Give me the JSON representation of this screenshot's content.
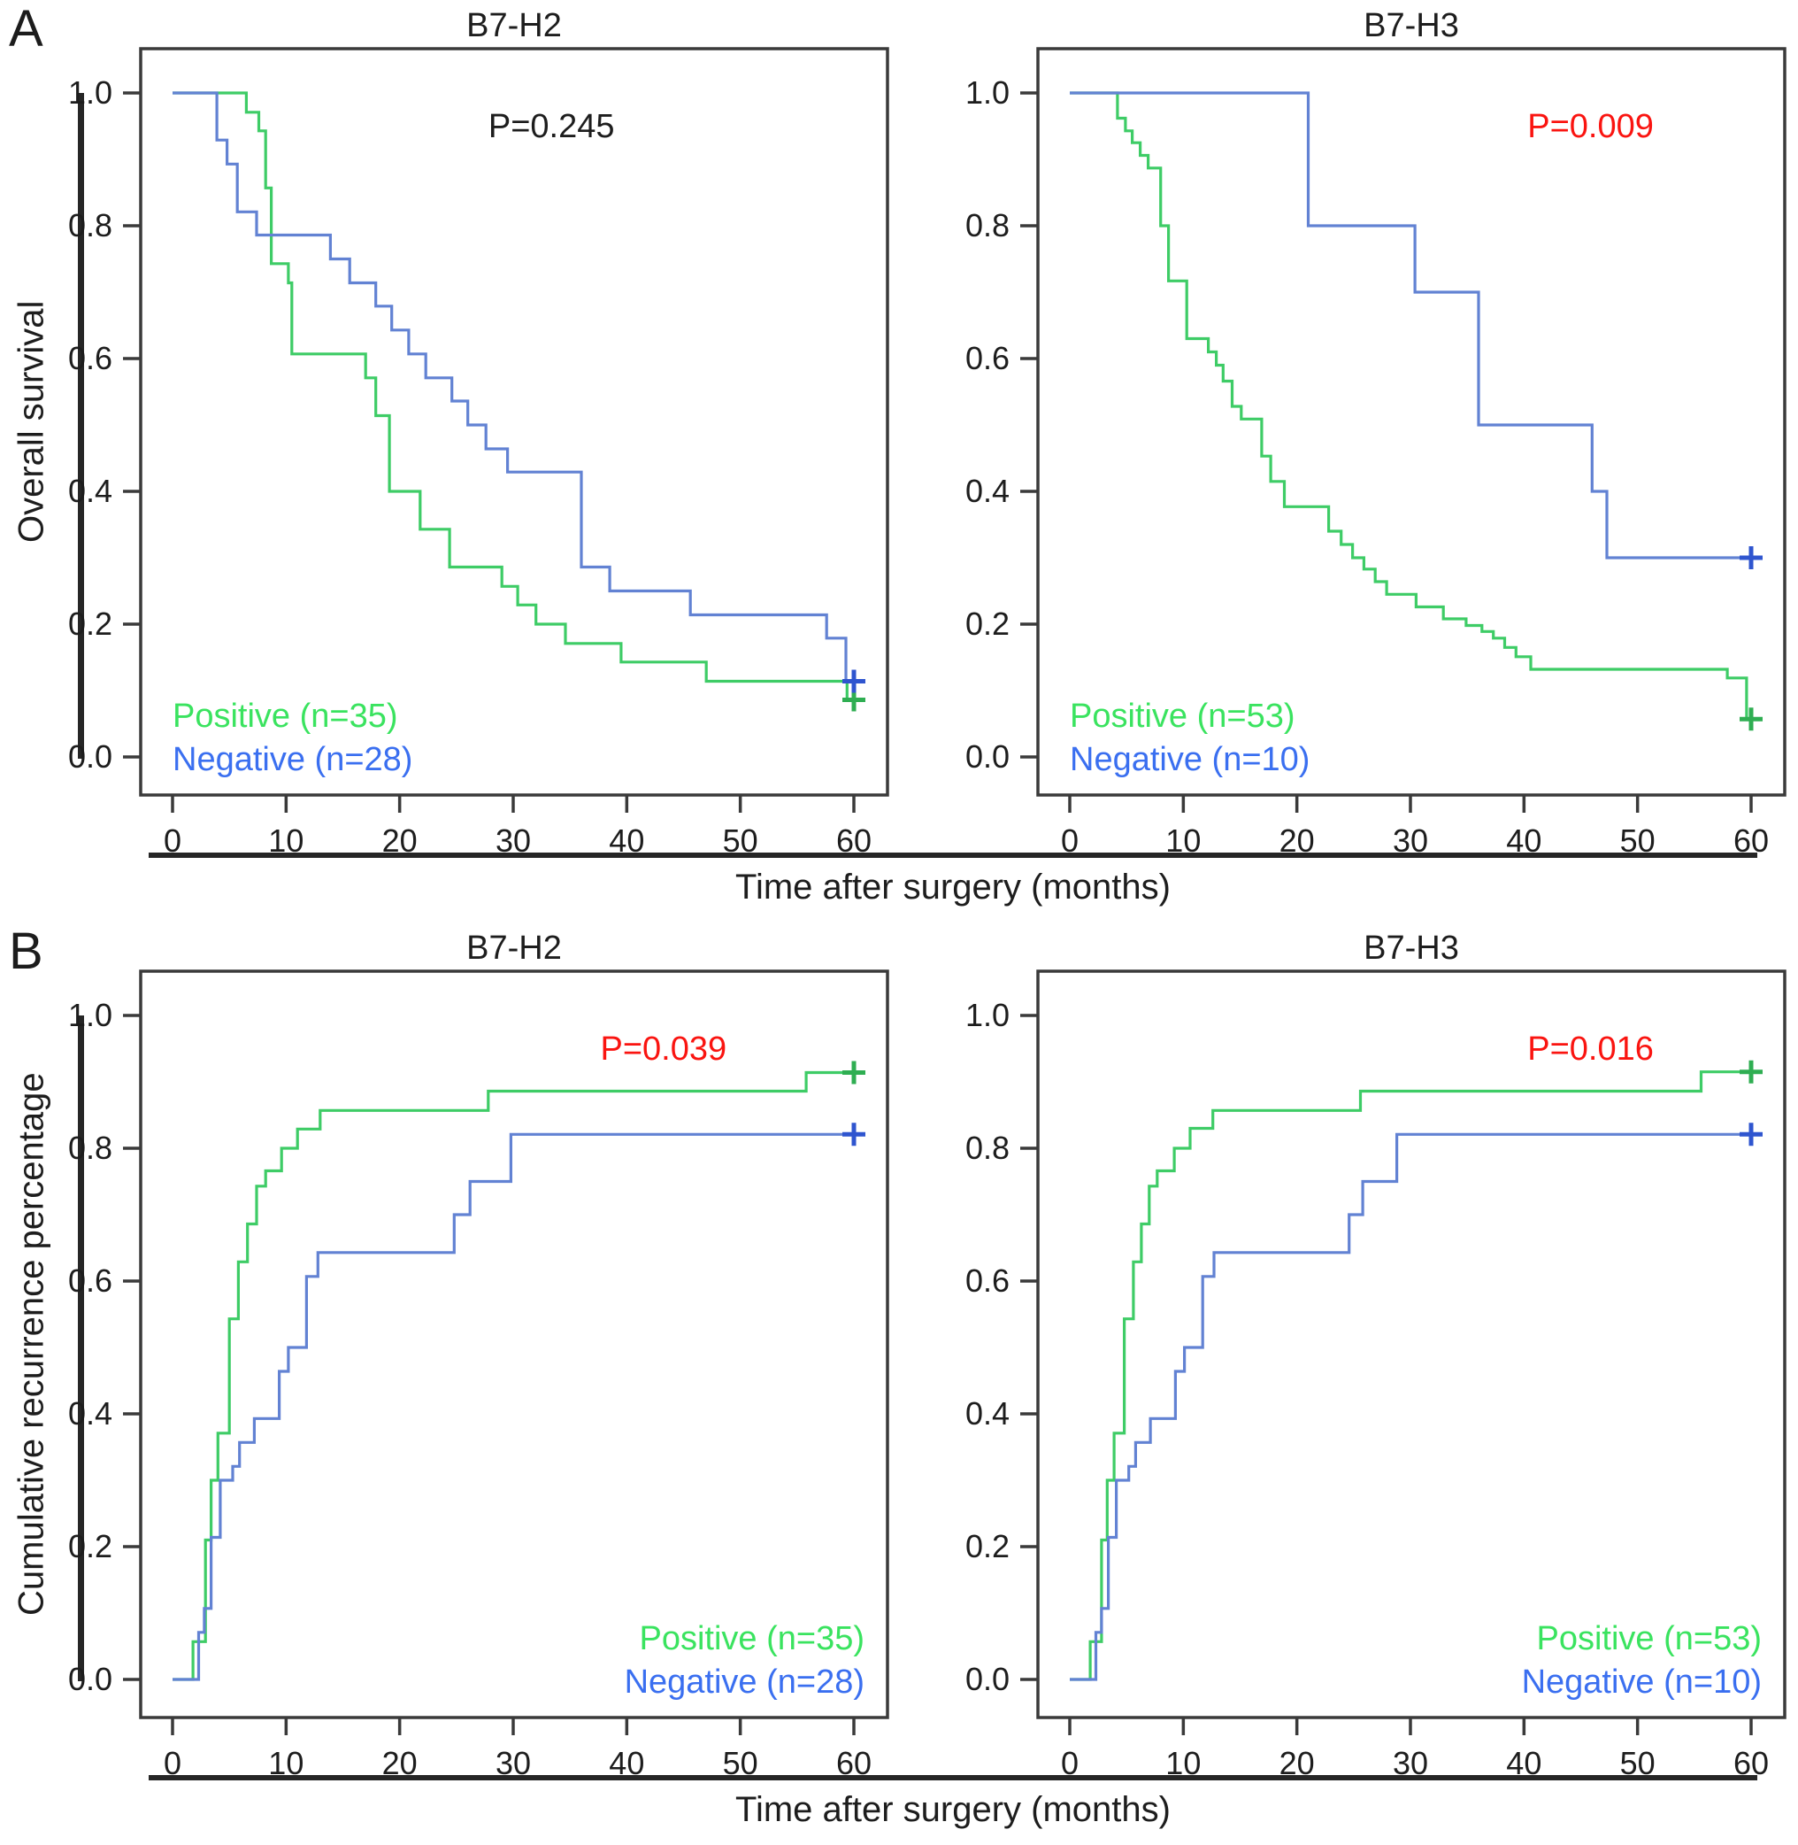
{
  "figure": {
    "panel_a_label": "A",
    "panel_b_label": "B",
    "row_a_ylabel": "Overall survival",
    "row_b_ylabel": "Cumulative recurrence percentage",
    "row_a_xlabel": "Time after surgery (months)",
    "row_b_xlabel": "Time after surgery (months)",
    "colors": {
      "axis": "#3a3a3a",
      "text": "#1d1d1d",
      "bar": "#262626",
      "pvalue_red": "#fa1410",
      "pvalue_black": "#1d1d1d"
    }
  },
  "chart_data": [
    {
      "id": "os-b7h2",
      "type": "line",
      "step": true,
      "title": "B7-H2",
      "xlabel": "Time after surgery (months)",
      "ylabel": "Overall survival",
      "xlim": [
        0,
        63
      ],
      "ylim": [
        0,
        1.05
      ],
      "xticks": [
        0,
        10,
        20,
        30,
        40,
        50,
        60
      ],
      "yticks": [
        1.0,
        0.8,
        0.6,
        0.4,
        0.2,
        0.0
      ],
      "grid": false,
      "pvalue": "P=0.245",
      "pvalue_color": "#1d1d1d",
      "pvalue_x_frac": 0.55,
      "legend_position": "bottom-left",
      "series": [
        {
          "name": "Positive (n=35)",
          "role": "positive",
          "color": "#3ecc66",
          "label_color": "#3ae35f",
          "censor": [
            60,
            0.086
          ],
          "censor_color": "#2fae52",
          "points": [
            [
              0,
              1.0
            ],
            [
              6.5,
              0.971
            ],
            [
              7.6,
              0.943
            ],
            [
              8.2,
              0.857
            ],
            [
              8.7,
              0.743
            ],
            [
              10.2,
              0.714
            ],
            [
              10.5,
              0.607
            ],
            [
              17.0,
              0.571
            ],
            [
              17.9,
              0.514
            ],
            [
              19.1,
              0.4
            ],
            [
              21.8,
              0.343
            ],
            [
              24.4,
              0.286
            ],
            [
              29.0,
              0.257
            ],
            [
              30.4,
              0.229
            ],
            [
              32.0,
              0.2
            ],
            [
              34.6,
              0.171
            ],
            [
              39.5,
              0.143
            ],
            [
              47.0,
              0.114
            ],
            [
              59.4,
              0.086
            ]
          ]
        },
        {
          "name": "Negative (n=28)",
          "role": "negative",
          "color": "#6282d3",
          "label_color": "#3a6ff0",
          "censor": [
            60,
            0.114
          ],
          "censor_color": "#2f55cf",
          "points": [
            [
              0,
              1.0
            ],
            [
              3.9,
              0.929
            ],
            [
              4.8,
              0.893
            ],
            [
              5.7,
              0.821
            ],
            [
              7.4,
              0.786
            ],
            [
              13.9,
              0.75
            ],
            [
              15.6,
              0.714
            ],
            [
              17.9,
              0.679
            ],
            [
              19.3,
              0.643
            ],
            [
              20.8,
              0.607
            ],
            [
              22.3,
              0.571
            ],
            [
              24.6,
              0.536
            ],
            [
              26.0,
              0.5
            ],
            [
              27.6,
              0.464
            ],
            [
              29.5,
              0.429
            ],
            [
              36.0,
              0.286
            ],
            [
              38.5,
              0.25
            ],
            [
              45.6,
              0.214
            ],
            [
              57.6,
              0.179
            ],
            [
              59.3,
              0.114
            ]
          ]
        }
      ]
    },
    {
      "id": "os-b7h3",
      "type": "line",
      "step": true,
      "title": "B7-H3",
      "xlabel": "Time after surgery (months)",
      "ylabel": "Overall survival",
      "xlim": [
        0,
        63
      ],
      "ylim": [
        0,
        1.05
      ],
      "xticks": [
        0,
        10,
        20,
        30,
        40,
        50,
        60
      ],
      "yticks": [
        1.0,
        0.8,
        0.6,
        0.4,
        0.2,
        0.0
      ],
      "grid": false,
      "pvalue": "P=0.009",
      "pvalue_color": "#fa1410",
      "pvalue_x_frac": 0.74,
      "legend_position": "bottom-left",
      "series": [
        {
          "name": "Positive (n=53)",
          "role": "positive",
          "color": "#3ecc66",
          "label_color": "#3ae35f",
          "censor": [
            60,
            0.057
          ],
          "censor_color": "#2fae52",
          "points": [
            [
              0,
              1.0
            ],
            [
              4.2,
              0.962
            ],
            [
              4.9,
              0.943
            ],
            [
              5.5,
              0.925
            ],
            [
              6.2,
              0.906
            ],
            [
              6.9,
              0.887
            ],
            [
              8.0,
              0.8
            ],
            [
              8.7,
              0.717
            ],
            [
              10.3,
              0.63
            ],
            [
              12.2,
              0.61
            ],
            [
              12.9,
              0.59
            ],
            [
              13.5,
              0.566
            ],
            [
              14.3,
              0.528
            ],
            [
              15.1,
              0.509
            ],
            [
              16.9,
              0.453
            ],
            [
              17.7,
              0.415
            ],
            [
              18.9,
              0.377
            ],
            [
              22.8,
              0.34
            ],
            [
              23.9,
              0.32
            ],
            [
              24.9,
              0.3
            ],
            [
              25.9,
              0.283
            ],
            [
              26.9,
              0.264
            ],
            [
              27.9,
              0.245
            ],
            [
              30.5,
              0.226
            ],
            [
              32.9,
              0.208
            ],
            [
              34.9,
              0.198
            ],
            [
              36.3,
              0.189
            ],
            [
              37.3,
              0.179
            ],
            [
              38.3,
              0.165
            ],
            [
              39.3,
              0.151
            ],
            [
              40.6,
              0.132
            ],
            [
              57.9,
              0.119
            ],
            [
              59.6,
              0.057
            ]
          ]
        },
        {
          "name": "Negative (n=10)",
          "role": "negative",
          "color": "#6282d3",
          "label_color": "#3a6ff0",
          "censor": [
            60,
            0.3
          ],
          "censor_color": "#2f55cf",
          "points": [
            [
              0,
              1.0
            ],
            [
              21.0,
              0.8
            ],
            [
              30.4,
              0.7
            ],
            [
              36.0,
              0.5
            ],
            [
              46.0,
              0.4
            ],
            [
              47.3,
              0.3
            ]
          ]
        }
      ]
    },
    {
      "id": "rec-b7h2",
      "type": "line",
      "step": true,
      "title": "B7-H2",
      "xlabel": "Time after surgery (months)",
      "ylabel": "Cumulative recurrence percentage",
      "xlim": [
        0,
        63
      ],
      "ylim": [
        0,
        1.05
      ],
      "xticks": [
        0,
        10,
        20,
        30,
        40,
        50,
        60
      ],
      "yticks": [
        1.0,
        0.8,
        0.6,
        0.4,
        0.2,
        0.0
      ],
      "grid": false,
      "pvalue": "P=0.039",
      "pvalue_color": "#fa1410",
      "pvalue_x_frac": 0.7,
      "legend_position": "bottom-right",
      "series": [
        {
          "name": "Positive (n=35)",
          "role": "positive",
          "color": "#3ecc66",
          "label_color": "#3ae35f",
          "censor": [
            60,
            0.914
          ],
          "censor_color": "#2fae52",
          "points": [
            [
              0,
              0.0
            ],
            [
              1.8,
              0.057
            ],
            [
              2.9,
              0.21
            ],
            [
              3.4,
              0.3
            ],
            [
              4.0,
              0.371
            ],
            [
              5.0,
              0.543
            ],
            [
              5.8,
              0.629
            ],
            [
              6.6,
              0.686
            ],
            [
              7.4,
              0.743
            ],
            [
              8.2,
              0.766
            ],
            [
              9.6,
              0.8
            ],
            [
              11.0,
              0.829
            ],
            [
              13.0,
              0.857
            ],
            [
              27.8,
              0.886
            ],
            [
              55.8,
              0.914
            ]
          ]
        },
        {
          "name": "Negative (n=28)",
          "role": "negative",
          "color": "#6282d3",
          "label_color": "#3a6ff0",
          "censor": [
            60,
            0.821
          ],
          "censor_color": "#2f55cf",
          "points": [
            [
              0,
              0.0
            ],
            [
              2.3,
              0.071
            ],
            [
              2.8,
              0.107
            ],
            [
              3.4,
              0.214
            ],
            [
              4.2,
              0.3
            ],
            [
              5.3,
              0.321
            ],
            [
              5.9,
              0.357
            ],
            [
              7.2,
              0.393
            ],
            [
              9.4,
              0.464
            ],
            [
              10.2,
              0.5
            ],
            [
              11.8,
              0.607
            ],
            [
              12.8,
              0.643
            ],
            [
              24.8,
              0.7
            ],
            [
              26.2,
              0.75
            ],
            [
              29.8,
              0.821
            ]
          ]
        }
      ]
    },
    {
      "id": "rec-b7h3",
      "type": "line",
      "step": true,
      "title": "B7-H3",
      "xlabel": "Time after surgery (months)",
      "ylabel": "Cumulative recurrence percentage",
      "xlim": [
        0,
        63
      ],
      "ylim": [
        0,
        1.05
      ],
      "xticks": [
        0,
        10,
        20,
        30,
        40,
        50,
        60
      ],
      "yticks": [
        1.0,
        0.8,
        0.6,
        0.4,
        0.2,
        0.0
      ],
      "grid": false,
      "pvalue": "P=0.016",
      "pvalue_color": "#fa1410",
      "pvalue_x_frac": 0.74,
      "legend_position": "bottom-right",
      "series": [
        {
          "name": "Positive (n=53)",
          "role": "positive",
          "color": "#3ecc66",
          "label_color": "#3ae35f",
          "censor": [
            60,
            0.915
          ],
          "censor_color": "#2fae52",
          "points": [
            [
              0,
              0.0
            ],
            [
              1.8,
              0.057
            ],
            [
              2.8,
              0.21
            ],
            [
              3.3,
              0.3
            ],
            [
              3.9,
              0.371
            ],
            [
              4.8,
              0.543
            ],
            [
              5.6,
              0.629
            ],
            [
              6.3,
              0.686
            ],
            [
              7.0,
              0.743
            ],
            [
              7.7,
              0.766
            ],
            [
              9.2,
              0.8
            ],
            [
              10.6,
              0.83
            ],
            [
              12.6,
              0.857
            ],
            [
              25.6,
              0.886
            ],
            [
              55.6,
              0.915
            ]
          ]
        },
        {
          "name": "Negative (n=10)",
          "role": "negative",
          "color": "#6282d3",
          "label_color": "#3a6ff0",
          "censor": [
            60,
            0.821
          ],
          "censor_color": "#2f55cf",
          "points": [
            [
              0,
              0.0
            ],
            [
              2.3,
              0.071
            ],
            [
              2.8,
              0.107
            ],
            [
              3.4,
              0.214
            ],
            [
              4.1,
              0.3
            ],
            [
              5.2,
              0.321
            ],
            [
              5.8,
              0.357
            ],
            [
              7.1,
              0.393
            ],
            [
              9.3,
              0.464
            ],
            [
              10.1,
              0.5
            ],
            [
              11.7,
              0.607
            ],
            [
              12.7,
              0.643
            ],
            [
              24.6,
              0.7
            ],
            [
              25.8,
              0.75
            ],
            [
              28.8,
              0.821
            ]
          ]
        }
      ]
    }
  ]
}
